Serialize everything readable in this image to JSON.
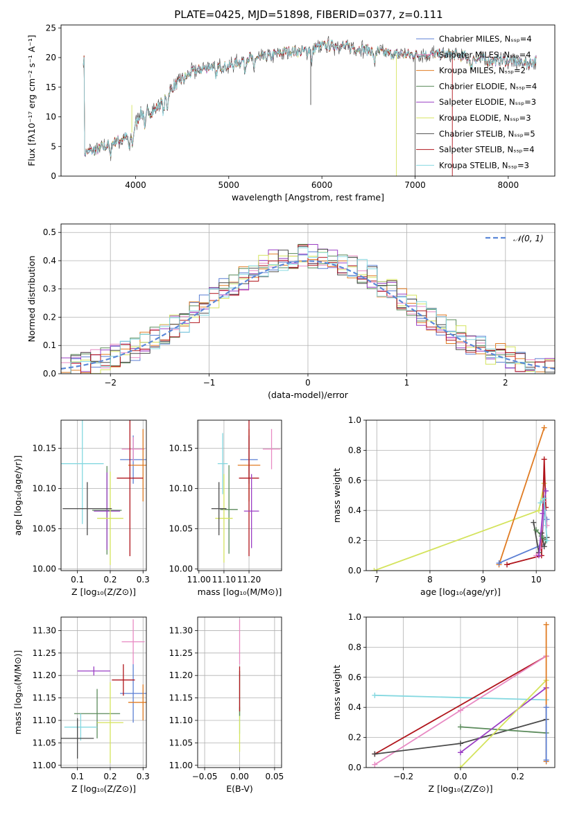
{
  "figure": {
    "title": "PLATE=0425, MJD=51898, FIBERID=0377, z=0.111"
  },
  "palette": {
    "Chabrier MILES": "#5b7fd4",
    "Salpeter MILES": "#e88ac3",
    "Kroupa MILES": "#e07b22",
    "Chabrier ELODIE": "#5a8a5a",
    "Salpeter ELODIE": "#9a3ec4",
    "Kroupa ELODIE": "#d4e35c",
    "Chabrier STELIB": "#4a4a4a",
    "Salpeter STELIB": "#b0141b",
    "Kroupa STELIB": "#84d8e0"
  },
  "chart_data": [
    {
      "id": "spectrum",
      "type": "line",
      "title": "PLATE=0425, MJD=51898, FIBERID=0377, z=0.111",
      "xlabel": "wavelength [Angstrom, rest frame]",
      "ylabel": "Flux [fλ10⁻¹⁷ erg cm⁻² s⁻¹ A⁻¹]",
      "xlim": [
        3200,
        8500
      ],
      "ylim": [
        0,
        25.5
      ],
      "xticks": [
        4000,
        5000,
        6000,
        7000,
        8000
      ],
      "yticks": [
        0,
        5,
        10,
        15,
        20,
        25
      ],
      "legend_position": "right",
      "continuum": {
        "x": [
          3450,
          3600,
          3800,
          3900,
          3950,
          4050,
          4200,
          4400,
          4600,
          4800,
          5000,
          5200,
          5400,
          5600,
          5800,
          6000,
          6200,
          6400,
          6600,
          6800,
          7000,
          7200,
          7400,
          7600,
          7800,
          8000,
          8200,
          8300
        ],
        "y": [
          4,
          4.5,
          6,
          6.5,
          7,
          10.5,
          11,
          15,
          17.5,
          18.5,
          18.5,
          20,
          20,
          21,
          21,
          22,
          22,
          21.5,
          21,
          20.5,
          20.5,
          20.5,
          20.5,
          20,
          19.5,
          19.5,
          19,
          19.5
        ]
      },
      "series": [
        {
          "name": "Chabrier MILES, N_SSP=4",
          "model": "Chabrier MILES"
        },
        {
          "name": "Salpeter MILES, N_SSP=4",
          "model": "Salpeter MILES"
        },
        {
          "name": "Kroupa MILES, N_SSP=2",
          "model": "Kroupa MILES"
        },
        {
          "name": "Chabrier ELODIE, N_SSP=4",
          "model": "Chabrier ELODIE"
        },
        {
          "name": "Salpeter ELODIE, N_SSP=3",
          "model": "Salpeter ELODIE"
        },
        {
          "name": "Kroupa ELODIE, N_SSP=3",
          "model": "Kroupa ELODIE"
        },
        {
          "name": "Chabrier STELIB, N_SSP=5",
          "model": "Chabrier STELIB"
        },
        {
          "name": "Salpeter STELIB, N_SSP=4",
          "model": "Salpeter STELIB"
        },
        {
          "name": "Kroupa STELIB, N_SSP=3",
          "model": "Kroupa STELIB"
        }
      ]
    },
    {
      "id": "residuals",
      "type": "line",
      "xlabel": "(data-model)/error",
      "ylabel": "Normed distribution",
      "xlim": [
        -2.5,
        2.5
      ],
      "ylim": [
        0,
        0.53
      ],
      "xticks": [
        -2,
        -1,
        0,
        1,
        2
      ],
      "yticks": [
        0.0,
        0.1,
        0.2,
        0.3,
        0.4,
        0.5
      ],
      "grid": true,
      "gaussian_label": "𝒩(0, 1)",
      "legend_position": "top-right"
    },
    {
      "id": "z-age",
      "type": "scatter",
      "xlabel": "Z [log₁₀(Z/Z⊙)]",
      "ylabel": "age  [log₁₀(age/yr)]",
      "xlim": [
        0.05,
        0.31
      ],
      "ylim": [
        9.998,
        10.185
      ],
      "xticks": [
        0.1,
        0.2,
        0.3
      ],
      "yticks": [
        10.0,
        10.05,
        10.1,
        10.15
      ],
      "grid": true,
      "points": [
        {
          "model": "Kroupa STELIB",
          "x": 0.115,
          "y": 10.131,
          "xerr": 0.065,
          "yerr": 0.075
        },
        {
          "model": "Chabrier MILES",
          "x": 0.27,
          "y": 10.136,
          "xerr": 0.04,
          "yerr": 0.03
        },
        {
          "model": "Salpeter MILES",
          "x": 0.27,
          "y": 10.149,
          "xerr": 0.035,
          "yerr": 0.015
        },
        {
          "model": "Kroupa MILES",
          "x": 0.3,
          "y": 10.129,
          "xerr": 0.045,
          "yerr": 0.045
        },
        {
          "model": "Salpeter STELIB",
          "x": 0.26,
          "y": 10.113,
          "xerr": 0.04,
          "yerr": 0.097
        },
        {
          "model": "Chabrier ELODIE",
          "x": 0.19,
          "y": 10.073,
          "xerr": 0.045,
          "yerr": 0.055
        },
        {
          "model": "Salpeter ELODIE",
          "x": 0.19,
          "y": 10.072,
          "xerr": 0.04,
          "yerr": 0.048
        },
        {
          "model": "Kroupa ELODIE",
          "x": 0.2,
          "y": 10.063,
          "xerr": 0.04,
          "yerr": 0.058
        },
        {
          "model": "Chabrier STELIB",
          "x": 0.13,
          "y": 10.075,
          "xerr": 0.075,
          "yerr": 0.033
        }
      ]
    },
    {
      "id": "mass-age",
      "type": "scatter",
      "xlabel": "mass [log₁₀(M/M⊙)]",
      "ylabel": "",
      "xlim": [
        10.995,
        11.33
      ],
      "ylim": [
        9.998,
        10.185
      ],
      "xticks": [
        11.0,
        11.1,
        11.2
      ],
      "yticks": [
        10.0,
        10.05,
        10.1,
        10.15
      ],
      "grid": true,
      "points": [
        {
          "model": "Kroupa STELIB",
          "x": 11.095,
          "y": 10.131,
          "xerr": 0.02,
          "yerr": 0.038
        },
        {
          "model": "Chabrier MILES",
          "x": 11.2,
          "y": 10.136,
          "xerr": 0.035,
          "yerr": 0.03
        },
        {
          "model": "Salpeter MILES",
          "x": 11.29,
          "y": 10.149,
          "xerr": 0.035,
          "yerr": 0.025
        },
        {
          "model": "Kroupa MILES",
          "x": 11.2,
          "y": 10.129,
          "xerr": 0.045,
          "yerr": 0.045
        },
        {
          "model": "Salpeter STELIB",
          "x": 11.2,
          "y": 10.113,
          "xerr": 0.04,
          "yerr": 0.097
        },
        {
          "model": "Chabrier ELODIE",
          "x": 11.12,
          "y": 10.074,
          "xerr": 0.035,
          "yerr": 0.055
        },
        {
          "model": "Salpeter ELODIE",
          "x": 11.21,
          "y": 10.072,
          "xerr": 0.03,
          "yerr": 0.046
        },
        {
          "model": "Kroupa ELODIE",
          "x": 11.1,
          "y": 10.063,
          "xerr": 0.035,
          "yerr": 0.055
        },
        {
          "model": "Chabrier STELIB",
          "x": 11.08,
          "y": 10.075,
          "xerr": 0.03,
          "yerr": 0.033
        }
      ]
    },
    {
      "id": "age-weight",
      "type": "line",
      "xlabel": "age  [log₁₀(age/yr)]",
      "ylabel": "mass weight",
      "xlim": [
        6.8,
        10.35
      ],
      "ylim": [
        0,
        1.0
      ],
      "xticks": [
        7,
        8,
        9,
        10
      ],
      "yticks": [
        0.0,
        0.2,
        0.4,
        0.6,
        0.8,
        1.0
      ],
      "grid": true,
      "series": [
        {
          "model": "Kroupa ELODIE",
          "x": [
            6.95,
            10.05,
            10.15
          ],
          "y": [
            0.0,
            0.4,
            0.58
          ]
        },
        {
          "model": "Kroupa MILES",
          "x": [
            9.3,
            10.15
          ],
          "y": [
            0.04,
            0.95
          ]
        },
        {
          "model": "Chabrier MILES",
          "x": [
            9.3,
            10.1,
            10.15,
            10.2
          ],
          "y": [
            0.05,
            0.17,
            0.4,
            0.34
          ]
        },
        {
          "model": "Salpeter STELIB",
          "x": [
            9.45,
            10.1,
            10.15,
            10.18
          ],
          "y": [
            0.04,
            0.1,
            0.74,
            0.42
          ]
        },
        {
          "model": "Salpeter MILES",
          "x": [
            10.0,
            10.08,
            10.15,
            10.2
          ],
          "y": [
            0.1,
            0.15,
            0.46,
            0.3
          ]
        },
        {
          "model": "Chabrier STELIB",
          "x": [
            9.95,
            10.05,
            10.1,
            10.15,
            10.2
          ],
          "y": [
            0.32,
            0.12,
            0.25,
            0.16,
            0.22
          ]
        },
        {
          "model": "Chabrier ELODIE",
          "x": [
            10.0,
            10.1,
            10.18
          ],
          "y": [
            0.27,
            0.23,
            0.2
          ]
        },
        {
          "model": "Salpeter ELODIE",
          "x": [
            10.05,
            10.12,
            10.18
          ],
          "y": [
            0.1,
            0.38,
            0.53
          ]
        },
        {
          "model": "Kroupa STELIB",
          "x": [
            10.08,
            10.15,
            10.2
          ],
          "y": [
            0.45,
            0.48,
            0.2
          ]
        }
      ]
    },
    {
      "id": "z-mass",
      "type": "scatter",
      "xlabel": "Z [log₁₀(Z/Z⊙)]",
      "ylabel": "mass [log₁₀(M/M⊙)]",
      "xlim": [
        0.05,
        0.31
      ],
      "ylim": [
        10.995,
        11.33
      ],
      "xticks": [
        0.1,
        0.2,
        0.3
      ],
      "yticks": [
        11.0,
        11.05,
        11.1,
        11.15,
        11.2,
        11.25,
        11.3
      ],
      "grid": true,
      "points": [
        {
          "model": "Salpeter MILES",
          "x": 0.27,
          "y": 11.275,
          "xerr": 0.035,
          "yerr": 0.05
        },
        {
          "model": "Chabrier MILES",
          "x": 0.27,
          "y": 11.16,
          "xerr": 0.04,
          "yerr": 0.065
        },
        {
          "model": "Kroupa MILES",
          "x": 0.3,
          "y": 11.14,
          "xerr": 0.045,
          "yerr": 0.04
        },
        {
          "model": "Salpeter STELIB",
          "x": 0.24,
          "y": 11.19,
          "xerr": 0.035,
          "yerr": 0.035
        },
        {
          "model": "Salpeter ELODIE",
          "x": 0.15,
          "y": 11.21,
          "xerr": 0.05,
          "yerr": 0.01
        },
        {
          "model": "Chabrier ELODIE",
          "x": 0.16,
          "y": 11.115,
          "xerr": 0.07,
          "yerr": 0.055
        },
        {
          "model": "Kroupa ELODIE",
          "x": 0.2,
          "y": 11.095,
          "xerr": 0.04,
          "yerr": 0.09
        },
        {
          "model": "Kroupa STELIB",
          "x": 0.11,
          "y": 11.085,
          "xerr": 0.05,
          "yerr": 0.03
        },
        {
          "model": "Chabrier STELIB",
          "x": 0.1,
          "y": 11.06,
          "xerr": 0.05,
          "yerr": 0.045
        }
      ]
    },
    {
      "id": "ebv-mass",
      "type": "scatter",
      "xlabel": "E(B-V)",
      "ylabel": "",
      "xlim": [
        -0.06,
        0.06
      ],
      "ylim": [
        10.995,
        11.33
      ],
      "xticks": [
        -0.05,
        0.0,
        0.05
      ],
      "yticks": [
        11.0,
        11.05,
        11.1,
        11.15,
        11.2,
        11.25,
        11.3
      ],
      "grid": true,
      "points": [
        {
          "model": "Salpeter MILES",
          "x": 0.0,
          "y": 11.275,
          "xerr": 0,
          "yerr": 0.05
        },
        {
          "model": "Kroupa STELIB",
          "x": 0.0,
          "y": 11.1,
          "xerr": 0,
          "yerr": 0.03
        },
        {
          "model": "Kroupa ELODIE",
          "x": 0.0,
          "y": 11.08,
          "xerr": 0,
          "yerr": 0.05
        },
        {
          "model": "Chabrier ELODIE",
          "x": 0.0,
          "y": 11.16,
          "xerr": 0,
          "yerr": 0.05
        },
        {
          "model": "Salpeter STELIB",
          "x": 0.0,
          "y": 11.17,
          "xerr": 0,
          "yerr": 0.05
        }
      ]
    },
    {
      "id": "z-weight",
      "type": "line",
      "xlabel": "Z [log₁₀(Z/Z⊙)]",
      "ylabel": "mass weight",
      "xlim": [
        -0.33,
        0.33
      ],
      "ylim": [
        0,
        1.0
      ],
      "xticks": [
        -0.2,
        0.0,
        0.2
      ],
      "yticks": [
        0.0,
        0.2,
        0.4,
        0.6,
        0.8,
        1.0
      ],
      "grid": true,
      "series": [
        {
          "model": "Kroupa STELIB",
          "x": [
            -0.3,
            0.3
          ],
          "y": [
            0.48,
            0.45
          ]
        },
        {
          "model": "Salpeter STELIB",
          "x": [
            -0.3,
            0.3
          ],
          "y": [
            0.09,
            0.74
          ]
        },
        {
          "model": "Salpeter MILES",
          "x": [
            -0.3,
            0.0,
            0.3
          ],
          "y": [
            0.02,
            0.38,
            0.74
          ]
        },
        {
          "model": "Chabrier STELIB",
          "x": [
            -0.3,
            0.0,
            0.3
          ],
          "y": [
            0.09,
            0.16,
            0.32
          ]
        },
        {
          "model": "Chabrier ELODIE",
          "x": [
            0.0,
            0.3
          ],
          "y": [
            0.27,
            0.23
          ]
        },
        {
          "model": "Salpeter ELODIE",
          "x": [
            0.0,
            0.3
          ],
          "y": [
            0.1,
            0.53
          ]
        },
        {
          "model": "Kroupa ELODIE",
          "x": [
            0.0,
            0.3
          ],
          "y": [
            0.0,
            0.58
          ]
        },
        {
          "model": "Kroupa MILES",
          "x": [
            0.3,
            0.3
          ],
          "y": [
            0.04,
            0.95
          ]
        },
        {
          "model": "Chabrier MILES",
          "x": [
            0.3,
            0.3
          ],
          "y": [
            0.05,
            0.4
          ]
        }
      ]
    }
  ]
}
